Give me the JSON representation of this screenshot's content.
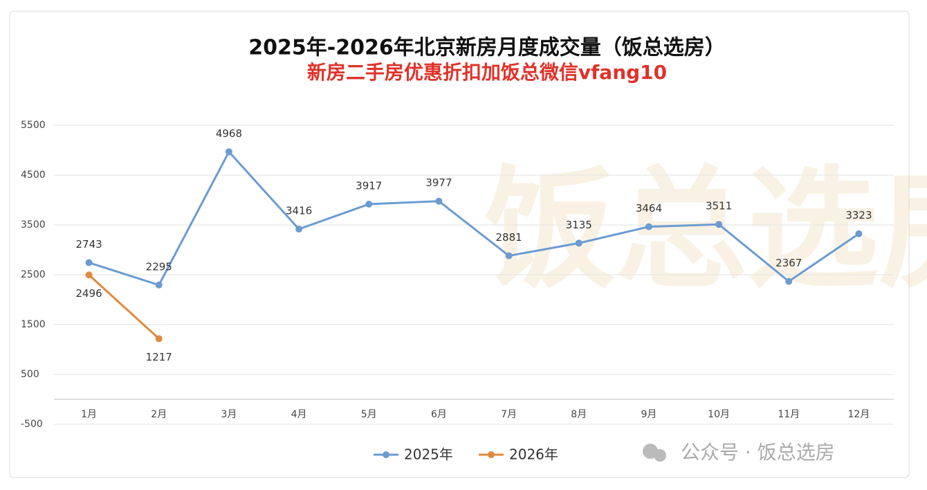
{
  "chart_data": {
    "type": "line",
    "title": "2025年-2026年北京新房月度成交量（饭总选房）",
    "subtitle": "新房二手房优惠折扣加饭总微信vfang10",
    "categories": [
      "1月",
      "2月",
      "3月",
      "4月",
      "5月",
      "6月",
      "7月",
      "8月",
      "9月",
      "10月",
      "11月",
      "12月"
    ],
    "series": [
      {
        "name": "2025年",
        "color": "#6b9bd1",
        "values": [
          2743,
          2295,
          4968,
          3416,
          3917,
          3977,
          2881,
          3135,
          3464,
          3511,
          2367,
          3323
        ]
      },
      {
        "name": "2026年",
        "color": "#e08a3c",
        "values": [
          2496,
          1217,
          null,
          null,
          null,
          null,
          null,
          null,
          null,
          null,
          null,
          null
        ]
      }
    ],
    "ylim": [
      -500,
      5500
    ],
    "yticks": [
      -500,
      500,
      1500,
      2500,
      3500,
      4500,
      5500
    ],
    "grid": true,
    "legend": "bottom",
    "watermark": "饭总选房",
    "footer": "公众号 · 饭总选房"
  }
}
